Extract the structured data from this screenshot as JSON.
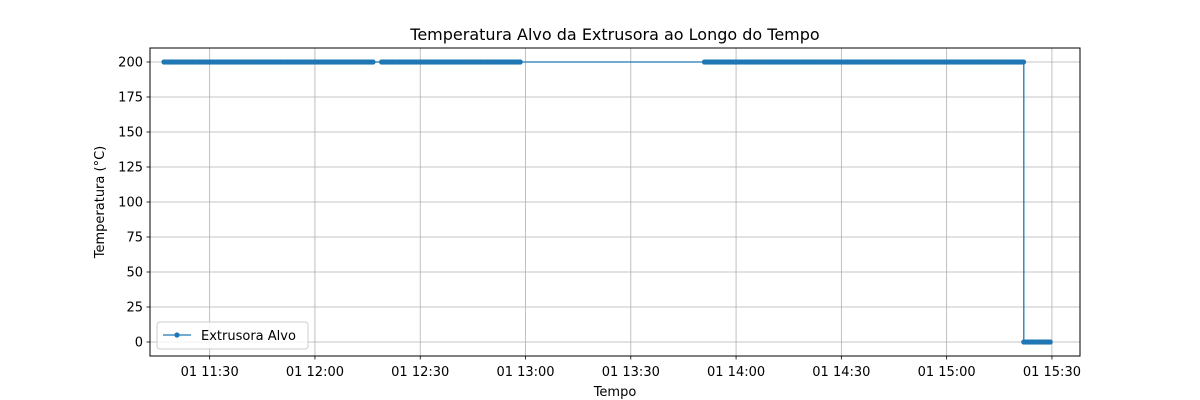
{
  "chart_data": {
    "type": "line",
    "title": "Temperatura Alvo da Extrusora ao Longo do Tempo",
    "xlabel": "Tempo",
    "ylabel": "Temperatura (°C)",
    "x_tick_labels": [
      "01 11:30",
      "01 12:00",
      "01 12:30",
      "01 13:00",
      "01 13:30",
      "01 14:00",
      "01 14:30",
      "01 15:00",
      "01 15:30"
    ],
    "x_tick_times": [
      "11:30",
      "12:00",
      "12:30",
      "13:00",
      "13:30",
      "14:00",
      "14:30",
      "15:00",
      "15:30"
    ],
    "y_ticks": [
      0,
      25,
      50,
      75,
      100,
      125,
      150,
      175,
      200
    ],
    "xlim": [
      "11:13",
      "15:38"
    ],
    "ylim": [
      -10,
      210
    ],
    "grid": true,
    "legend_position": "lower-left",
    "color": "#1f77b4",
    "series": [
      {
        "name": "Extrusora Alvo",
        "segments": [
          {
            "start": "11:17",
            "end": "12:17",
            "value": 200
          },
          {
            "start": "12:19",
            "end": "12:59",
            "value": 200
          },
          {
            "start": "13:51",
            "end": "15:22",
            "value": 200
          },
          {
            "start": "15:22",
            "end": "15:30",
            "value": 0
          }
        ]
      }
    ]
  }
}
